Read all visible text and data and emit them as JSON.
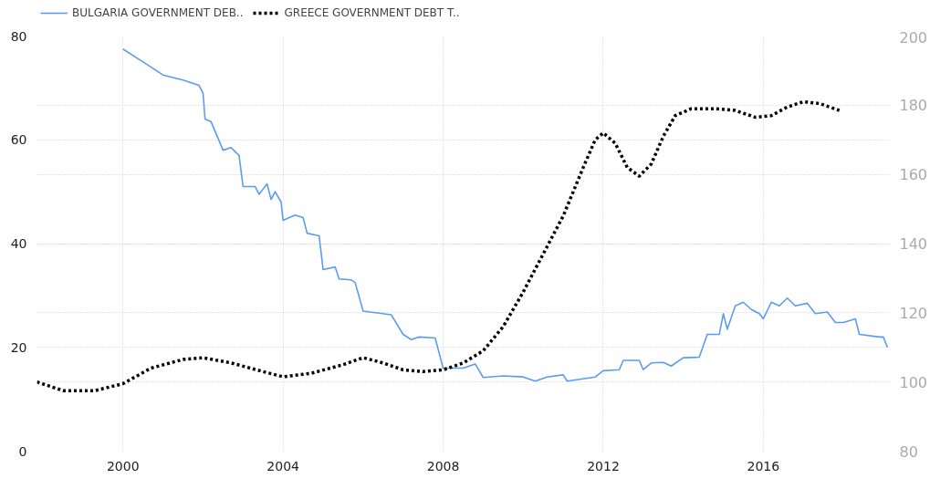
{
  "chart_data": {
    "type": "line",
    "xlim": [
      1997.85,
      2019.15
    ],
    "xticks": [
      2000,
      2004,
      2008,
      2012,
      2016
    ],
    "ylim": [
      0,
      80
    ],
    "yticks": [
      0,
      20,
      40,
      60,
      80
    ],
    "y2lim": [
      80,
      200
    ],
    "y2ticks": [
      80,
      100,
      120,
      140,
      160,
      180,
      200
    ],
    "grid": true,
    "legend": "top left",
    "marker": "none",
    "series": [
      {
        "name": "BULGARIA GOVERNMENT DEB..",
        "color": "#5b9cf2",
        "line_style": "solid",
        "x": [
          2000.0,
          2000.5,
          2001.0,
          2001.5,
          2001.9,
          2002.0,
          2002.05,
          2002.2,
          2002.5,
          2002.7,
          2002.9,
          2003.0,
          2003.3,
          2003.4,
          2003.6,
          2003.7,
          2003.8,
          2003.95,
          2004.0,
          2004.3,
          2004.5,
          2004.6,
          2004.9,
          2005.0,
          2005.3,
          2005.4,
          2005.7,
          2005.8,
          2006.0,
          2006.7,
          2007.0,
          2007.2,
          2007.4,
          2007.8,
          2008.0,
          2008.5,
          2008.8,
          2009.0,
          2009.5,
          2010.0,
          2010.3,
          2010.6,
          2011.0,
          2011.1,
          2011.8,
          2012.0,
          2012.4,
          2012.5,
          2012.9,
          2013.0,
          2013.2,
          2013.5,
          2013.7,
          2014.0,
          2014.4,
          2014.6,
          2014.9,
          2015.0,
          2015.1,
          2015.3,
          2015.5,
          2015.7,
          2015.9,
          2016.0,
          2016.2,
          2016.4,
          2016.6,
          2016.8,
          2017.1,
          2017.3,
          2017.6,
          2017.8,
          2018.0,
          2018.3,
          2018.4,
          2018.9,
          2019.0,
          2019.1
        ],
        "values": [
          77.5,
          75,
          72.5,
          71.5,
          70.5,
          69,
          64,
          63.5,
          58,
          58.5,
          57,
          51,
          51,
          49.5,
          51.5,
          48.5,
          50,
          48,
          44.5,
          45.5,
          45,
          42,
          41.5,
          35,
          35.5,
          33.2,
          33,
          32.5,
          27,
          26.3,
          22.5,
          21.5,
          22,
          21.8,
          16,
          16,
          16.8,
          14.2,
          14.5,
          14.3,
          13.5,
          14.3,
          14.7,
          13.5,
          14.3,
          15.5,
          15.7,
          17.5,
          17.5,
          15.7,
          17,
          17.1,
          16.4,
          18,
          18.1,
          22.5,
          22.5,
          26.5,
          23.5,
          28,
          28.7,
          27.3,
          26.5,
          25.5,
          28.7,
          28,
          29.5,
          28,
          28.5,
          26.5,
          26.8,
          24.8,
          24.8,
          25.5,
          22.5,
          22,
          22,
          20
        ]
      },
      {
        "name": "GREECE GOVERNMENT DEBT T..",
        "color": "#000000",
        "line_style": "dotted",
        "axis": "y2",
        "x": [
          1997.85,
          1998.5,
          1999.3,
          2000.0,
          2000.7,
          2001.5,
          2002.0,
          2002.7,
          2003.5,
          2004.0,
          2004.7,
          2005.5,
          2006.0,
          2006.5,
          2007.0,
          2007.5,
          2008.0,
          2008.5,
          2009.0,
          2009.5,
          2010.0,
          2010.5,
          2011.0,
          2011.5,
          2011.8,
          2012.0,
          2012.3,
          2012.6,
          2012.9,
          2013.2,
          2013.5,
          2013.8,
          2014.2,
          2014.8,
          2015.3,
          2015.8,
          2016.2,
          2016.6,
          2017.0,
          2017.4,
          2017.9
        ],
        "values": [
          100,
          97.5,
          97.5,
          99.5,
          104,
          106.5,
          107,
          105.5,
          103,
          101.5,
          102.5,
          105,
          107,
          105.5,
          103.5,
          103,
          103.5,
          105.5,
          109,
          116,
          126,
          137,
          148,
          162,
          170,
          172,
          169,
          162,
          159.5,
          163,
          171,
          177,
          179,
          179,
          178.5,
          176.5,
          177,
          179.5,
          181,
          180.5,
          178.5
        ]
      }
    ]
  }
}
